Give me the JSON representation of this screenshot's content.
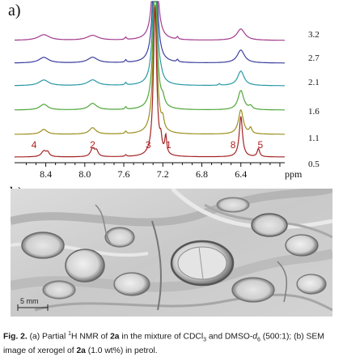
{
  "panel_a": {
    "label": "a)",
    "x_unit": "ppm",
    "x_ticks": [
      "8.4",
      "8.0",
      "7.6",
      "7.2",
      "6.8",
      "6.4"
    ],
    "peak_labels": [
      "4",
      "2",
      "3",
      "1",
      "8",
      "5"
    ],
    "trace_labels": [
      "3.2",
      "2.7",
      "2.1",
      "1.6",
      "1.1",
      "0.5"
    ],
    "trace_colors": [
      "#a23a8c",
      "#3c3f9e",
      "#2a98a6",
      "#4fa63a",
      "#9b8f1f",
      "#a32424"
    ]
  },
  "panel_b": {
    "label": "b)",
    "scale_bar_text": "5 mm"
  },
  "caption": {
    "fig_label": "Fig. 2.",
    "part1": " (a) Partial ",
    "sup1": "1",
    "part2": "H NMR of ",
    "cmpd1": "2a",
    "part3": " in the mixture of CDCl",
    "sub3": "3",
    "part4": " and DMSO-",
    "d": "d",
    "sub6": "6",
    "part5": " (500:1); (b) SEM image of xerogel of ",
    "cmpd2": "2a",
    "part6": " (1.0 wt%) in petrol."
  }
}
